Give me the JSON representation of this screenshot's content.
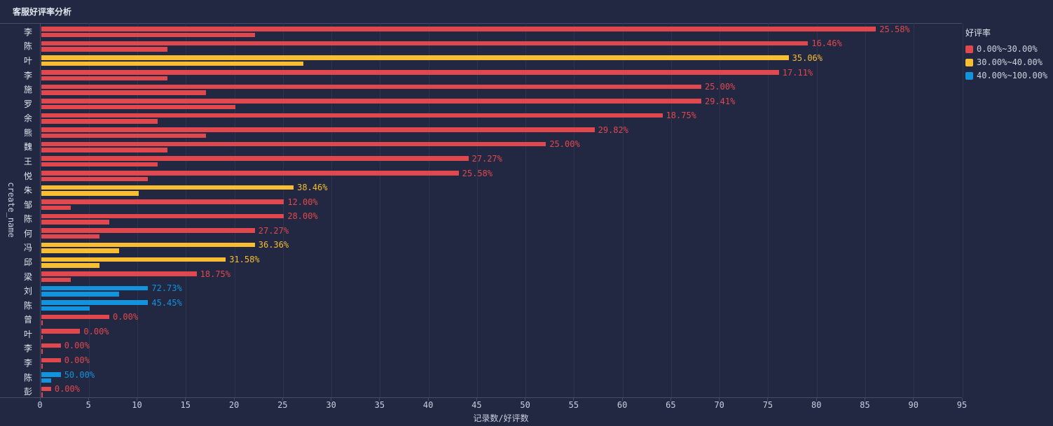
{
  "page": {
    "title": "客服好评率分析"
  },
  "colors": {
    "background": "#222842",
    "grid": "#2d3450",
    "axis": "#454d6a",
    "tick_text": "#c9cede",
    "title_text": "#e2e6ee",
    "red": "#e1484e",
    "yellow": "#f8bd31",
    "blue": "#1293dd"
  },
  "chart_data": {
    "type": "bar",
    "orientation": "horizontal",
    "title": "客服好评率分析",
    "xlabel": "记录数/好评数",
    "ylabel": "create_name",
    "xlim": [
      0,
      95
    ],
    "x_ticks": [
      0,
      5,
      10,
      15,
      20,
      25,
      30,
      35,
      40,
      45,
      50,
      55,
      60,
      65,
      70,
      75,
      80,
      85,
      90,
      95
    ],
    "grid": true,
    "bars_per_category": [
      "记录数",
      "好评数"
    ],
    "legend": {
      "title": "好评率",
      "position": "top-right",
      "items": [
        {
          "label": "0.00%~30.00%",
          "color": "#e1484e"
        },
        {
          "label": "30.00%~40.00%",
          "color": "#f8bd31"
        },
        {
          "label": "40.00%~100.00%",
          "color": "#1293dd"
        }
      ]
    },
    "categories": [
      "李",
      "陈",
      "叶",
      "李",
      "施",
      "罗",
      "余",
      "熊",
      "魏",
      "王",
      "悦",
      "朱",
      "邹",
      "陈",
      "何",
      "冯",
      "邱",
      "梁",
      "刘",
      "陈",
      "曾",
      "叶",
      "李",
      "李",
      "陈",
      "彭"
    ],
    "rows": [
      {
        "name": "李",
        "records": 86,
        "good": 22,
        "rate": "25.58%",
        "color": "#e1484e"
      },
      {
        "name": "陈",
        "records": 79,
        "good": 13,
        "rate": "16.46%",
        "color": "#e1484e"
      },
      {
        "name": "叶",
        "records": 77,
        "good": 27,
        "rate": "35.06%",
        "color": "#f8bd31"
      },
      {
        "name": "李",
        "records": 76,
        "good": 13,
        "rate": "17.11%",
        "color": "#e1484e"
      },
      {
        "name": "施",
        "records": 68,
        "good": 17,
        "rate": "25.00%",
        "color": "#e1484e"
      },
      {
        "name": "罗",
        "records": 68,
        "good": 20,
        "rate": "29.41%",
        "color": "#e1484e"
      },
      {
        "name": "余",
        "records": 64,
        "good": 12,
        "rate": "18.75%",
        "color": "#e1484e"
      },
      {
        "name": "熊",
        "records": 57,
        "good": 17,
        "rate": "29.82%",
        "color": "#e1484e"
      },
      {
        "name": "魏",
        "records": 52,
        "good": 13,
        "rate": "25.00%",
        "color": "#e1484e"
      },
      {
        "name": "王",
        "records": 44,
        "good": 12,
        "rate": "27.27%",
        "color": "#e1484e"
      },
      {
        "name": "悦",
        "records": 43,
        "good": 11,
        "rate": "25.58%",
        "color": "#e1484e"
      },
      {
        "name": "朱",
        "records": 26,
        "good": 10,
        "rate": "38.46%",
        "color": "#f8bd31"
      },
      {
        "name": "邹",
        "records": 25,
        "good": 3,
        "rate": "12.00%",
        "color": "#e1484e"
      },
      {
        "name": "陈",
        "records": 25,
        "good": 7,
        "rate": "28.00%",
        "color": "#e1484e"
      },
      {
        "name": "何",
        "records": 22,
        "good": 6,
        "rate": "27.27%",
        "color": "#e1484e"
      },
      {
        "name": "冯",
        "records": 22,
        "good": 8,
        "rate": "36.36%",
        "color": "#f8bd31"
      },
      {
        "name": "邱",
        "records": 19,
        "good": 6,
        "rate": "31.58%",
        "color": "#f8bd31"
      },
      {
        "name": "梁",
        "records": 16,
        "good": 3,
        "rate": "18.75%",
        "color": "#e1484e"
      },
      {
        "name": "刘",
        "records": 11,
        "good": 8,
        "rate": "72.73%",
        "color": "#1293dd"
      },
      {
        "name": "陈",
        "records": 11,
        "good": 5,
        "rate": "45.45%",
        "color": "#1293dd"
      },
      {
        "name": "曾",
        "records": 7,
        "good": 0,
        "rate": "0.00%",
        "color": "#e1484e"
      },
      {
        "name": "叶",
        "records": 4,
        "good": 0,
        "rate": "0.00%",
        "color": "#e1484e"
      },
      {
        "name": "李",
        "records": 2,
        "good": 0,
        "rate": "0.00%",
        "color": "#e1484e"
      },
      {
        "name": "李",
        "records": 2,
        "good": 0,
        "rate": "0.00%",
        "color": "#e1484e"
      },
      {
        "name": "陈",
        "records": 2,
        "good": 1,
        "rate": "50.00%",
        "color": "#1293dd"
      },
      {
        "name": "彭",
        "records": 1,
        "good": 0,
        "rate": "0.00%",
        "color": "#e1484e"
      }
    ]
  }
}
